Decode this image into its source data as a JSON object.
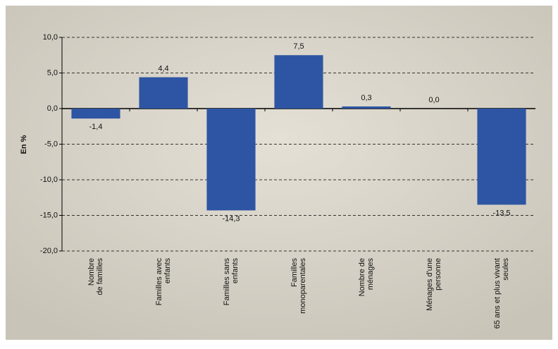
{
  "chart_data": {
    "type": "bar",
    "y_label": "En %",
    "categories": [
      [
        "Nombre",
        "de familles"
      ],
      [
        "Familles avec",
        "enfants"
      ],
      [
        "Familles sans",
        "enfants"
      ],
      [
        "Familles",
        "monoparentales"
      ],
      [
        "Nombre de",
        "ménages"
      ],
      [
        "Ménages d'une",
        "personne"
      ],
      [
        "65 ans et plus vivant",
        "seules"
      ]
    ],
    "values": [
      -1.4,
      4.4,
      -14.3,
      7.5,
      0.3,
      0.0,
      -13.5
    ],
    "value_labels": [
      "-1,4",
      "4,4",
      "-14,3",
      "7,5",
      "0,3",
      "0,0",
      "-13,5"
    ],
    "color": "#2e55a3",
    "ylim": [
      -20,
      10
    ],
    "yticks": [
      {
        "value": -20,
        "label": "-20,0"
      },
      {
        "value": -15,
        "label": "-15,0"
      },
      {
        "value": -10,
        "label": "-10,0"
      },
      {
        "value": -5,
        "label": "-5,0"
      },
      {
        "value": 0,
        "label": "0,0"
      },
      {
        "value": 5,
        "label": "5,0"
      },
      {
        "value": 10,
        "label": "10,0"
      }
    ],
    "grid": true
  }
}
